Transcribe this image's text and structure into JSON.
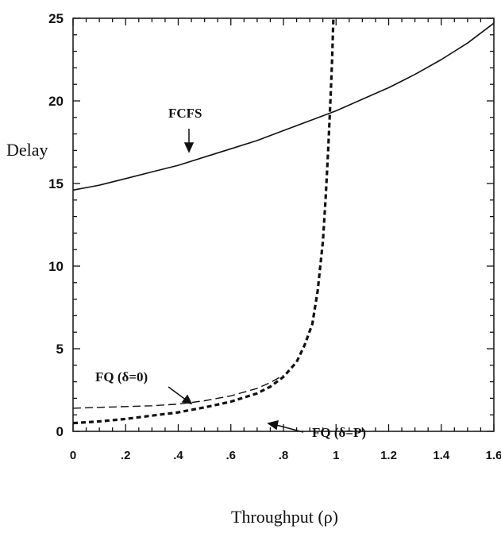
{
  "chart_data": {
    "type": "line",
    "xlabel": "Throughput (ρ)",
    "ylabel": "Delay",
    "xlim": [
      0,
      1.6
    ],
    "ylim": [
      0,
      25
    ],
    "x_ticks": [
      0,
      0.2,
      0.4,
      0.6,
      0.8,
      1,
      1.2,
      1.4,
      1.6
    ],
    "x_tick_labels": [
      "0",
      ".2",
      ".4",
      ".6",
      ".8",
      "1",
      "1.2",
      "1.4",
      "1.6"
    ],
    "y_ticks": [
      0,
      5,
      10,
      15,
      20,
      25
    ],
    "y_tick_labels": [
      "0",
      "5",
      "10",
      "15",
      "20",
      "25"
    ],
    "grid": false,
    "series": [
      {
        "name": "FCFS",
        "style": "solid",
        "x": [
          0,
          0.1,
          0.2,
          0.3,
          0.4,
          0.5,
          0.6,
          0.7,
          0.8,
          0.9,
          1.0,
          1.1,
          1.2,
          1.3,
          1.4,
          1.5,
          1.6
        ],
        "y": [
          14.6,
          14.9,
          15.3,
          15.7,
          16.1,
          16.6,
          17.1,
          17.6,
          18.2,
          18.8,
          19.4,
          20.1,
          20.8,
          21.6,
          22.5,
          23.5,
          24.7
        ]
      },
      {
        "name": "FQ (δ=0)",
        "style": "thin-dashed",
        "x": [
          0,
          0.1,
          0.2,
          0.3,
          0.4,
          0.5,
          0.6,
          0.7,
          0.75,
          0.8
        ],
        "y": [
          1.4,
          1.45,
          1.5,
          1.55,
          1.65,
          1.85,
          2.15,
          2.6,
          2.95,
          3.4
        ]
      },
      {
        "name": "FQ (δ=P)",
        "style": "thick-dashed",
        "x": [
          0,
          0.05,
          0.1,
          0.2,
          0.3,
          0.4,
          0.5,
          0.6,
          0.7,
          0.75,
          0.8,
          0.85,
          0.88,
          0.91,
          0.93,
          0.95,
          0.96,
          0.97,
          0.98,
          0.985,
          0.99
        ],
        "y": [
          0.5,
          0.55,
          0.6,
          0.75,
          0.95,
          1.15,
          1.45,
          1.8,
          2.3,
          2.7,
          3.3,
          4.2,
          5.2,
          6.5,
          8.5,
          11.5,
          14.0,
          17.0,
          20.5,
          22.5,
          25
        ]
      }
    ],
    "annotations": [
      {
        "text": "FCFS",
        "target": "FCFS"
      },
      {
        "text": "FQ (δ=0)",
        "target": "FQ (δ=0)"
      },
      {
        "text": "FQ (δ=P)",
        "target": "FQ (δ=P)"
      }
    ]
  }
}
